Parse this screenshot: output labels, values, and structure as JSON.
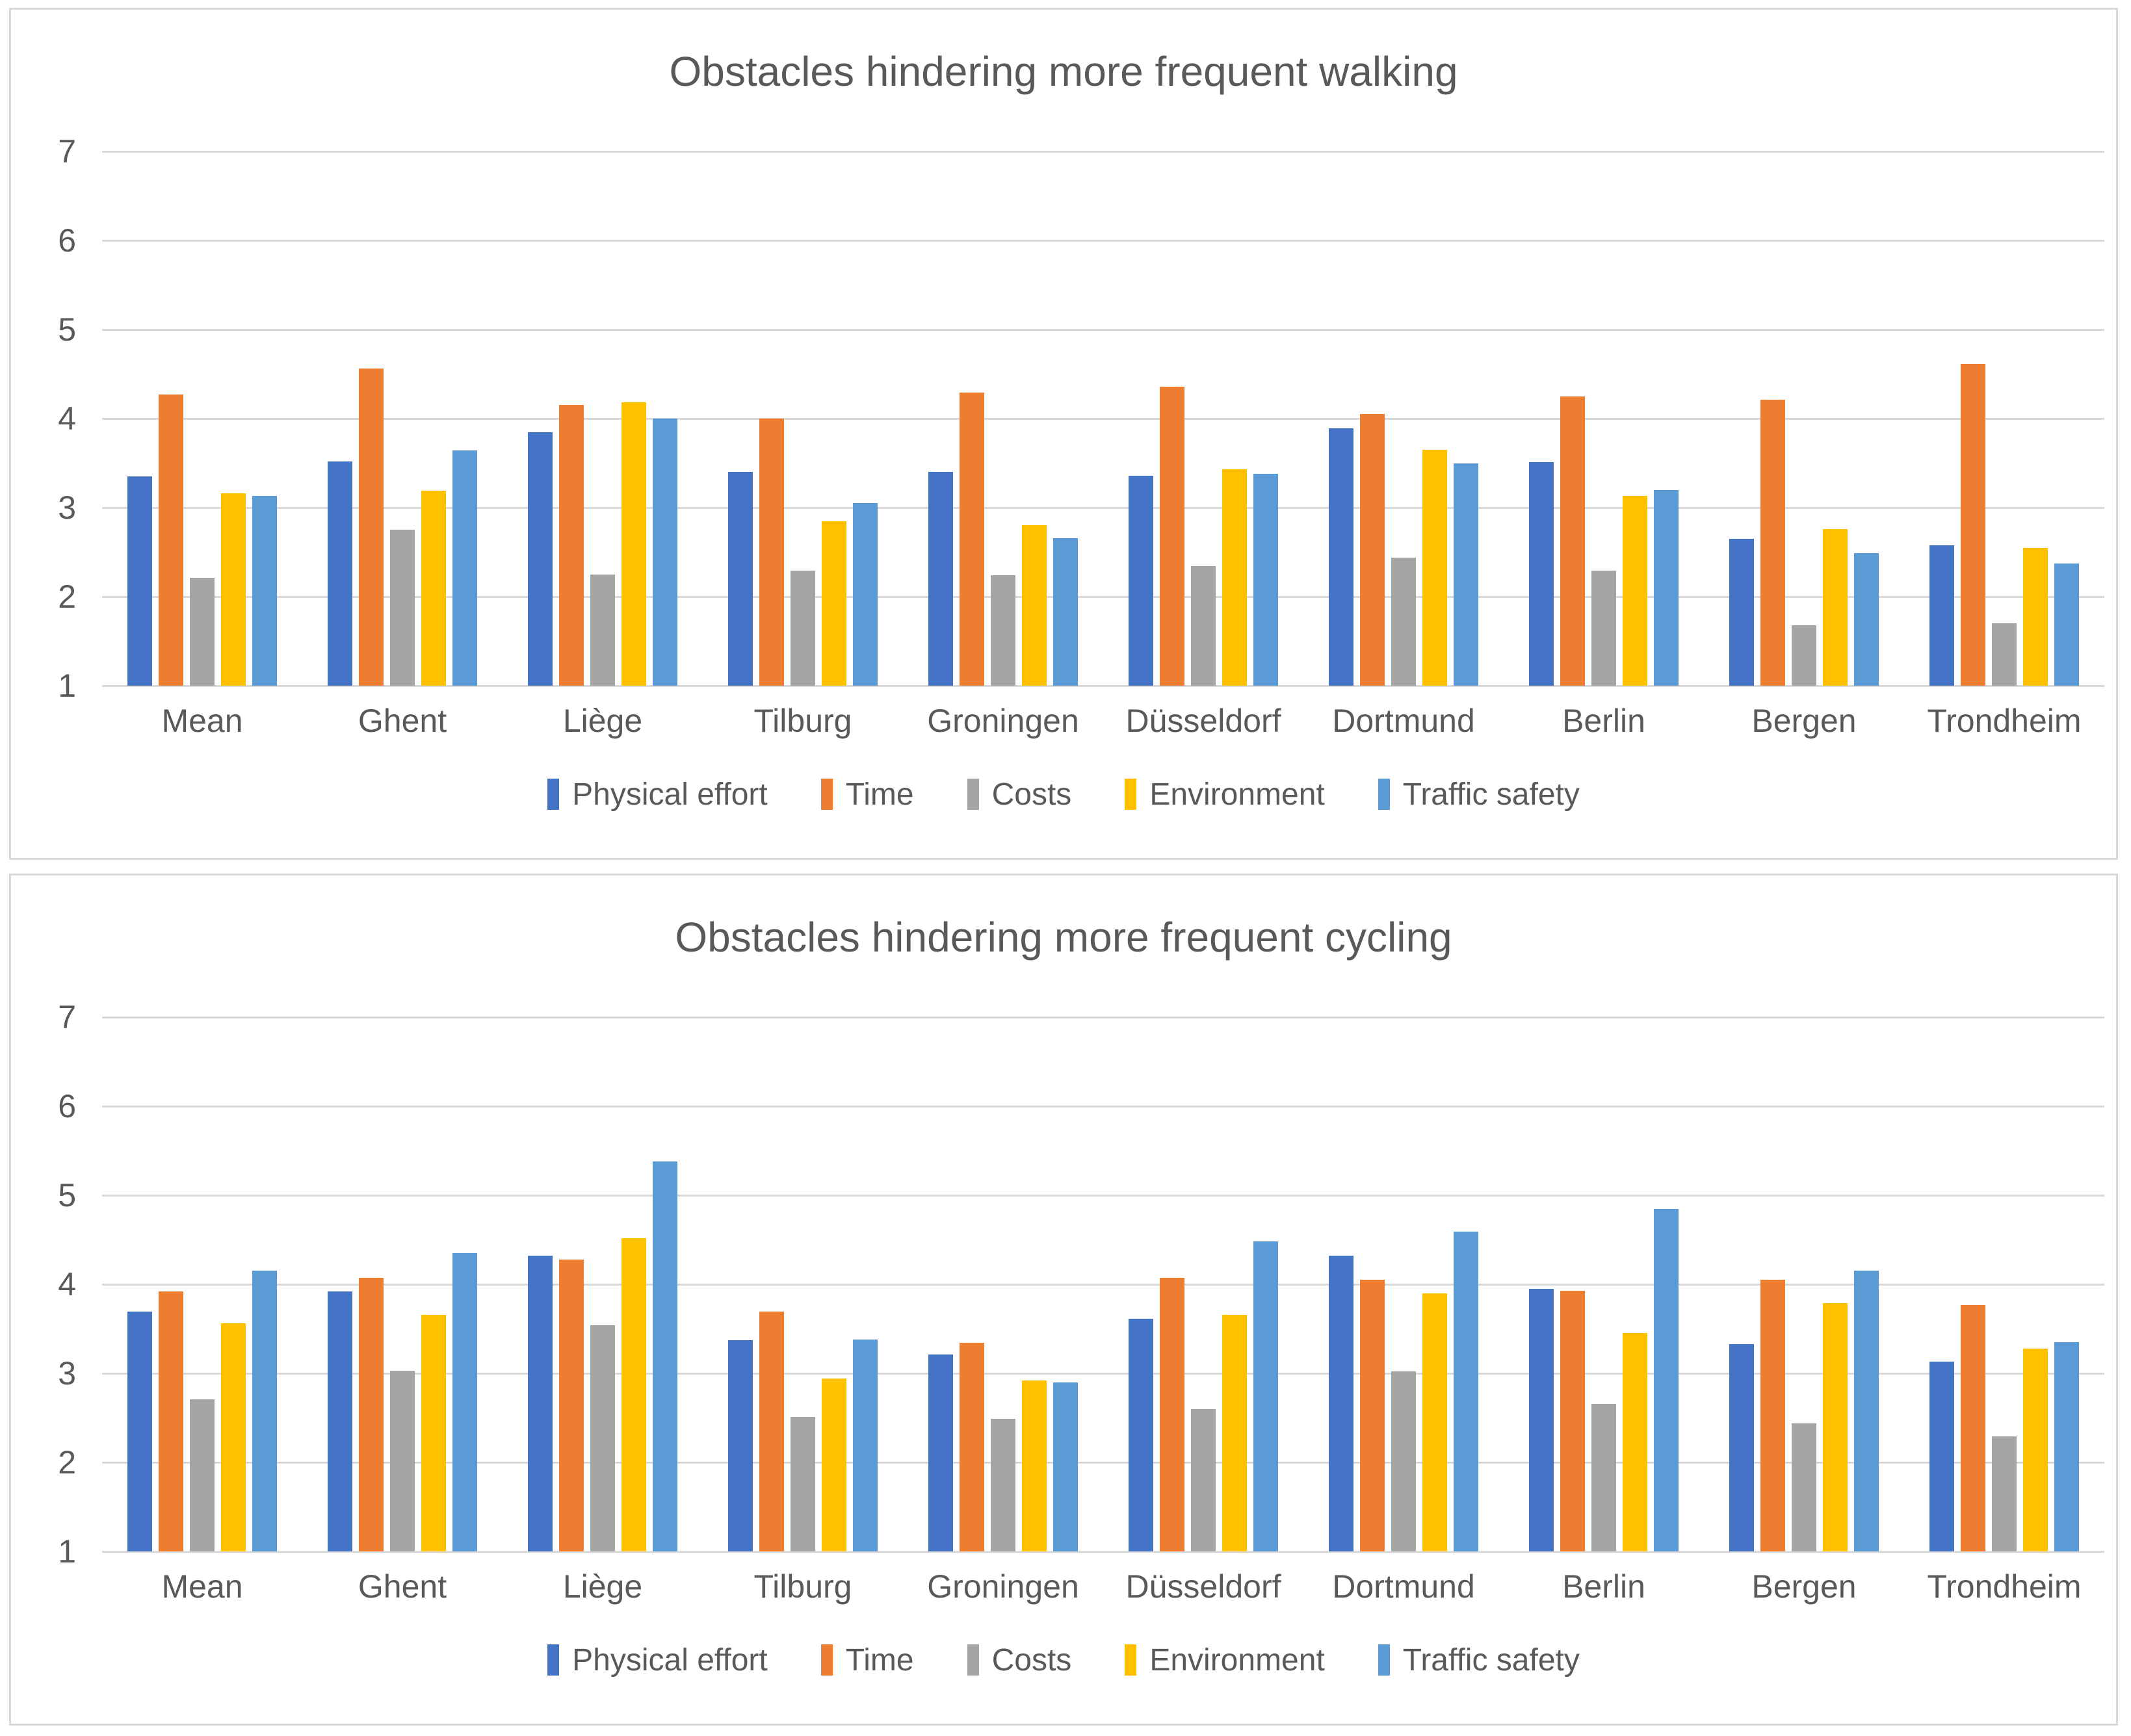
{
  "style": {
    "text_color": "#595959",
    "gridline_color": "#D9D9D9",
    "panel_border_color": "#D9D9D9",
    "background": "#FFFFFF",
    "series_colors": {
      "physical_effort": "#4472C4",
      "time": "#ED7D31",
      "costs": "#A5A5A5",
      "environment": "#FFC000",
      "traffic_safety": "#5B9BD5"
    }
  },
  "chart_data": [
    {
      "type": "bar",
      "title": "Obstacles hindering more frequent walking",
      "categories": [
        "Mean",
        "Ghent",
        "Liège",
        "Tilburg",
        "Groningen",
        "Düsseldorf",
        "Dortmund",
        "Berlin",
        "Bergen",
        "Trondheim"
      ],
      "series": [
        {
          "name": "Physical effort",
          "color": "#4472C4",
          "values": [
            3.35,
            3.52,
            3.85,
            3.4,
            3.4,
            3.36,
            3.89,
            3.51,
            2.65,
            2.58
          ]
        },
        {
          "name": "Time",
          "color": "#ED7D31",
          "values": [
            4.27,
            4.56,
            4.15,
            4.0,
            4.29,
            4.36,
            4.05,
            4.25,
            4.21,
            4.61
          ]
        },
        {
          "name": "Costs",
          "color": "#A5A5A5",
          "values": [
            2.21,
            2.75,
            2.25,
            2.29,
            2.24,
            2.34,
            2.44,
            2.29,
            1.68,
            1.7
          ]
        },
        {
          "name": "Environment",
          "color": "#FFC000",
          "values": [
            3.16,
            3.19,
            4.18,
            2.85,
            2.8,
            3.43,
            3.65,
            3.13,
            2.76,
            2.55
          ]
        },
        {
          "name": "Traffic safety",
          "color": "#5B9BD5",
          "values": [
            3.13,
            3.64,
            4.0,
            3.05,
            2.66,
            3.38,
            3.5,
            3.2,
            2.49,
            2.37
          ]
        }
      ],
      "ylabel": "",
      "xlabel": "",
      "ylim": [
        1,
        7
      ],
      "yticks": [
        7,
        6,
        5,
        4,
        3,
        2,
        1
      ],
      "grid": true,
      "legend_position": "bottom"
    },
    {
      "type": "bar",
      "title": "Obstacles hindering more frequent cycling",
      "categories": [
        "Mean",
        "Ghent",
        "Liège",
        "Tilburg",
        "Groningen",
        "Düsseldorf",
        "Dortmund",
        "Berlin",
        "Bergen",
        "Trondheim"
      ],
      "series": [
        {
          "name": "Physical effort",
          "color": "#4472C4",
          "values": [
            3.69,
            3.92,
            4.32,
            3.37,
            3.21,
            3.61,
            4.32,
            3.95,
            3.33,
            3.13
          ]
        },
        {
          "name": "Time",
          "color": "#ED7D31",
          "values": [
            3.92,
            4.07,
            4.28,
            3.69,
            3.34,
            4.07,
            4.05,
            3.93,
            4.05,
            3.77
          ]
        },
        {
          "name": "Costs",
          "color": "#A5A5A5",
          "values": [
            2.71,
            3.03,
            3.54,
            2.51,
            2.49,
            2.6,
            3.02,
            2.66,
            2.44,
            2.29
          ]
        },
        {
          "name": "Environment",
          "color": "#FFC000",
          "values": [
            3.56,
            3.66,
            4.52,
            2.94,
            2.92,
            3.66,
            3.9,
            3.45,
            3.79,
            3.28
          ]
        },
        {
          "name": "Traffic safety",
          "color": "#5B9BD5",
          "values": [
            4.15,
            4.35,
            5.38,
            3.38,
            2.9,
            4.48,
            4.59,
            4.85,
            4.15,
            3.35
          ]
        }
      ],
      "ylabel": "",
      "xlabel": "",
      "ylim": [
        1,
        7
      ],
      "yticks": [
        7,
        6,
        5,
        4,
        3,
        2,
        1
      ],
      "grid": true,
      "legend_position": "bottom"
    }
  ]
}
